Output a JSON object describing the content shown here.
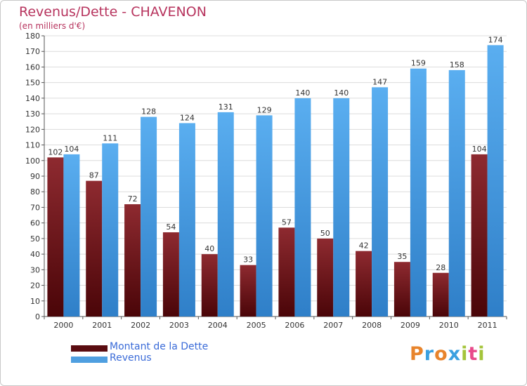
{
  "header": {
    "title": "Revenus/Dette - CHAVENON",
    "subtitle": "(en milliers d'€)"
  },
  "chart_data": {
    "type": "bar",
    "categories": [
      "2000",
      "2001",
      "2002",
      "2003",
      "2004",
      "2005",
      "2006",
      "2007",
      "2008",
      "2009",
      "2010",
      "2011"
    ],
    "series": [
      {
        "name": "Montant de la Dette",
        "values": [
          102,
          87,
          72,
          54,
          40,
          33,
          57,
          50,
          42,
          35,
          28,
          104
        ],
        "color": "#7a1a1f"
      },
      {
        "name": "Revenus",
        "values": [
          104,
          111,
          128,
          124,
          131,
          129,
          140,
          140,
          147,
          159,
          158,
          174
        ],
        "color": "#4f9fe0"
      }
    ],
    "title": "Revenus/Dette - CHAVENON",
    "ylabel": "(en milliers d'€)",
    "ylim": [
      0,
      180
    ],
    "ytick_step": 10,
    "grid": true,
    "legend_position": "bottom-left"
  },
  "legend": {
    "items": [
      {
        "label": "Montant de la Dette",
        "color": "#5a0c10"
      },
      {
        "label": "Revenus",
        "color": "#4f9fe0"
      }
    ]
  },
  "logo": {
    "text": "Proxiti",
    "letter_colors": [
      "#e8842c",
      "#3aa0e0",
      "#e8842c",
      "#3aa0e0",
      "#a4c43a",
      "#e84a8a",
      "#a4c43a"
    ]
  }
}
